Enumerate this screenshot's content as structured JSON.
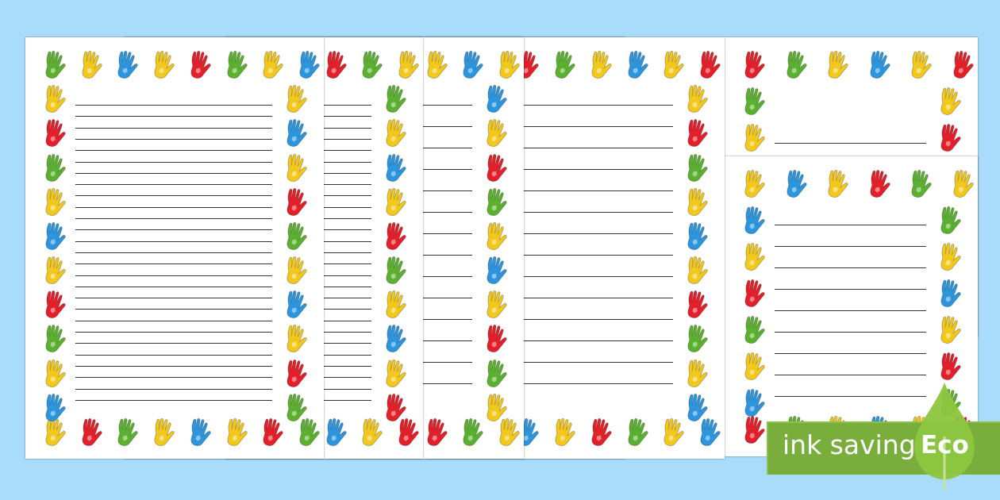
{
  "hand_colors": [
    "#e3202a",
    "#f2c81c",
    "#5bb12f",
    "#2b95dd"
  ],
  "badge": {
    "label": "ink saving",
    "eco_label": "Eco",
    "color": "#79ae3d",
    "leaf_color": "#8dc63f"
  },
  "background_color": "#a8dcfa",
  "hand_icon": "handprint-icon"
}
